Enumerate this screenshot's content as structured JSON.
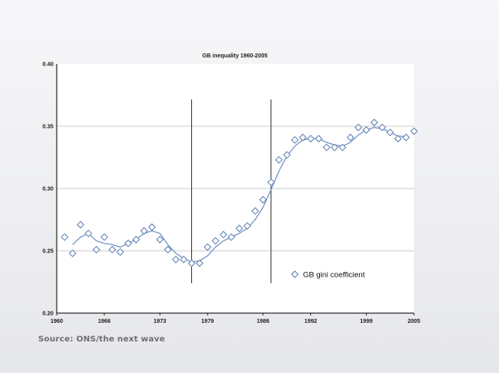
{
  "chart_data": {
    "type": "scatter",
    "title": "GB inequality 1960-2005",
    "xlabel": "",
    "ylabel": "",
    "xlim": [
      1960,
      2005
    ],
    "ylim": [
      0.2,
      0.4
    ],
    "x_ticks": [
      1960,
      1966,
      1973,
      1979,
      1986,
      1992,
      1999,
      2005
    ],
    "y_ticks": [
      0.2,
      0.25,
      0.3,
      0.35,
      0.4
    ],
    "y_tick_labels": [
      "0.20",
      "0.25",
      "0.30",
      "0.35",
      "0.40"
    ],
    "grid": "horizontal",
    "legend_position": "lower-right",
    "vertical_markers": [
      1977,
      1987
    ],
    "series": [
      {
        "name": "GB gini coefficient",
        "marker": "diamond-open",
        "color": "#5a7fb5",
        "x": [
          1961,
          1962,
          1963,
          1964,
          1965,
          1966,
          1967,
          1968,
          1969,
          1970,
          1971,
          1972,
          1973,
          1974,
          1975,
          1976,
          1977,
          1978,
          1979,
          1980,
          1981,
          1982,
          1983,
          1984,
          1985,
          1986,
          1987,
          1988,
          1989,
          1990,
          1991,
          1992,
          1993,
          1994,
          1995,
          1996,
          1997,
          1998,
          1999,
          2000,
          2001,
          2002,
          2003,
          2004,
          2005
        ],
        "y": [
          0.261,
          0.248,
          0.271,
          0.264,
          0.251,
          0.261,
          0.251,
          0.249,
          0.256,
          0.259,
          0.266,
          0.269,
          0.259,
          0.251,
          0.243,
          0.243,
          0.24,
          0.24,
          0.253,
          0.258,
          0.263,
          0.261,
          0.268,
          0.27,
          0.282,
          0.291,
          0.305,
          0.323,
          0.327,
          0.339,
          0.341,
          0.34,
          0.34,
          0.333,
          0.333,
          0.333,
          0.341,
          0.349,
          0.347,
          0.353,
          0.349,
          0.345,
          0.34,
          0.341,
          0.346
        ]
      },
      {
        "name": "trend",
        "type": "line",
        "color": "#6f90c4",
        "x": [
          1962,
          1963,
          1964,
          1965,
          1966,
          1967,
          1968,
          1969,
          1970,
          1971,
          1972,
          1973,
          1974,
          1975,
          1976,
          1977,
          1978,
          1979,
          1980,
          1981,
          1982,
          1983,
          1984,
          1985,
          1986,
          1987,
          1988,
          1989,
          1990,
          1991,
          1992,
          1993,
          1994,
          1995,
          1996,
          1997,
          1998,
          1999,
          2000,
          2001,
          2002,
          2003,
          2004
        ],
        "y": [
          0.255,
          0.261,
          0.264,
          0.258,
          0.256,
          0.255,
          0.253,
          0.256,
          0.259,
          0.264,
          0.266,
          0.264,
          0.255,
          0.248,
          0.244,
          0.241,
          0.242,
          0.246,
          0.253,
          0.258,
          0.261,
          0.264,
          0.268,
          0.275,
          0.285,
          0.299,
          0.314,
          0.326,
          0.334,
          0.339,
          0.34,
          0.34,
          0.337,
          0.335,
          0.334,
          0.337,
          0.343,
          0.347,
          0.349,
          0.348,
          0.345,
          0.342,
          0.342
        ]
      }
    ]
  },
  "source": "Source: ONS/the next wave"
}
